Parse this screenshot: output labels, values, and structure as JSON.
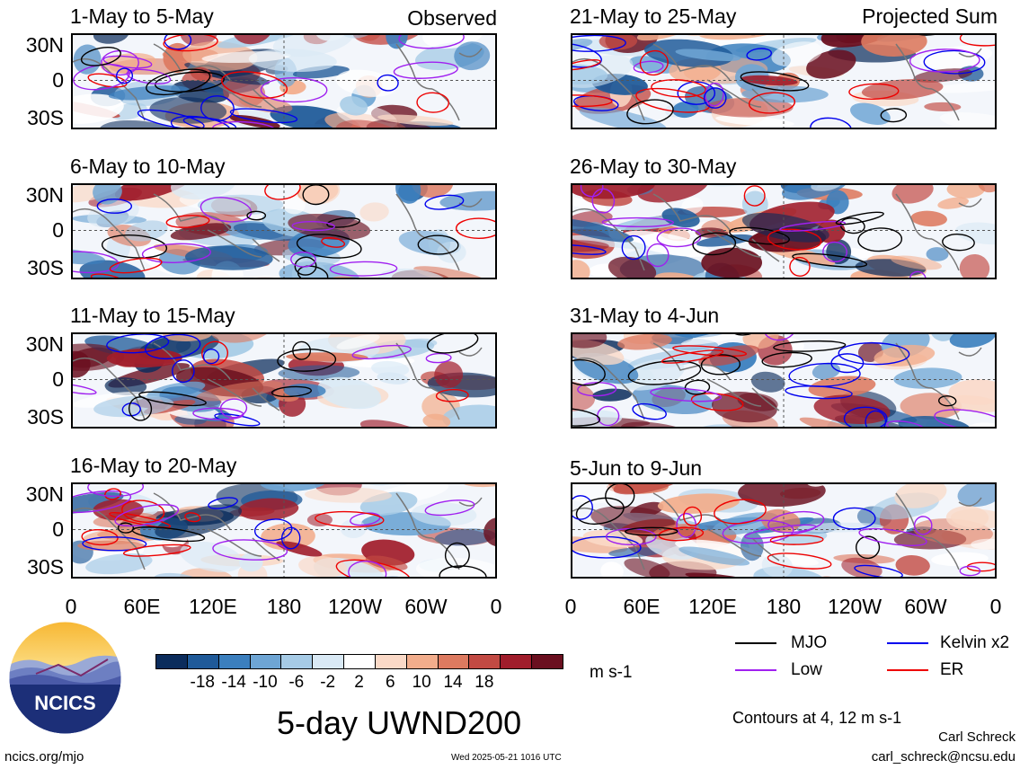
{
  "panels": [
    {
      "title": "1-May to 5-May",
      "label": "Observed",
      "seed": 11
    },
    {
      "title": "6-May to 10-May",
      "label": "",
      "seed": 23
    },
    {
      "title": "11-May to 15-May",
      "label": "",
      "seed": 37
    },
    {
      "title": "16-May to 20-May",
      "label": "",
      "seed": 41
    },
    {
      "title": "21-May to 25-May",
      "label": "Projected Sum",
      "seed": 53
    },
    {
      "title": "26-May to 30-May",
      "label": "",
      "seed": 67
    },
    {
      "title": "31-May to 4-Jun",
      "label": "",
      "seed": 79
    },
    {
      "title": "5-Jun to 9-Jun",
      "label": "",
      "seed": 83
    }
  ],
  "lat_labels": [
    "30N",
    "0",
    "30S"
  ],
  "lon_labels": [
    "0",
    "60E",
    "120E",
    "180",
    "120W",
    "60W",
    "0"
  ],
  "colorbar": {
    "labels": [
      "-18",
      "-14",
      "-10",
      "-6",
      "-2",
      "2",
      "6",
      "10",
      "14",
      "18"
    ],
    "colors": [
      "#0b2c5c",
      "#1f5a99",
      "#3b7fbe",
      "#6ea5d4",
      "#a6cbe6",
      "#d9e9f5",
      "#ffffff",
      "#fad9c7",
      "#f2ad8c",
      "#dd7a60",
      "#c24a43",
      "#a01d2b",
      "#6a0f1f"
    ],
    "unit": "m s-1"
  },
  "legend": {
    "items": [
      {
        "label": "MJO",
        "color": "#000000"
      },
      {
        "label": "Kelvin x2",
        "color": "#0000ee"
      },
      {
        "label": "Low",
        "color": "#a020f0"
      },
      {
        "label": "ER",
        "color": "#ee0000"
      }
    ],
    "note": "Contours at 4, 12 m s-1"
  },
  "main_title": "5-day UWND200",
  "logo_text": "NCICS",
  "footer": {
    "url": "ncics.org/mjo",
    "timestamp": "Wed 2025-05-21 1016 UTC",
    "author": "Carl Schreck",
    "email": "carl_schreck@ncsu.edu"
  }
}
